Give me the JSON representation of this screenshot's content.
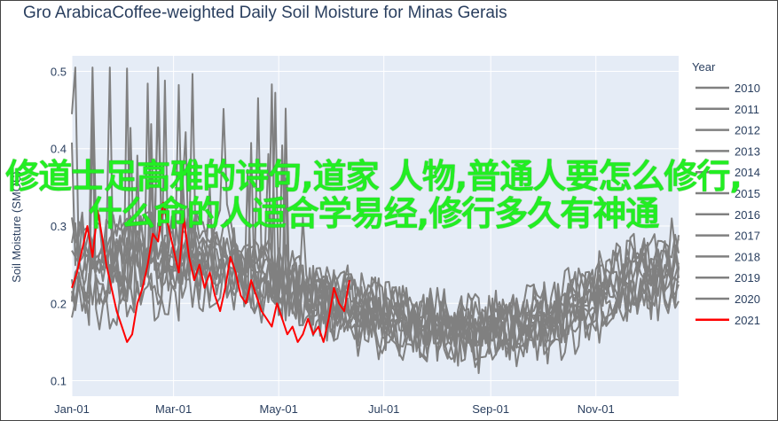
{
  "colors": {
    "background": "#ffffff",
    "plot_bg": "#e5ecf6",
    "gridline": "#ffffff",
    "text": "#2a3f5f",
    "history": "#808080",
    "current": "#ff0000",
    "watermark": "#22ee22"
  },
  "overlay_text": "修道士足高雅的诗句,道家 人物,普通人要怎么修行,什么命的人适合学易经,修行多久有神通",
  "chart_data": {
    "type": "line",
    "title": "Gro ArabicaCoffee-weighted Daily Soil Moisture for Minas Gerais",
    "xlabel": "",
    "ylabel": "Soil Moisture (SMOS)",
    "x_ticks": [
      "Jan-01",
      "Mar-01",
      "May-01",
      "Jul-01",
      "Sep-01",
      "Nov-01"
    ],
    "x_tick_days": [
      0,
      59,
      120,
      181,
      243,
      304
    ],
    "x_range_days": [
      0,
      352
    ],
    "y_ticks": [
      0.1,
      0.2,
      0.3,
      0.4,
      0.5
    ],
    "y_tick_labels": [
      "0.1",
      "0.2",
      "0.3",
      "0.4",
      "0.5"
    ],
    "ylim": [
      0.08,
      0.52
    ],
    "grid": true,
    "legend_title": "Year",
    "legend_position": "right",
    "series": [
      {
        "name": "2010",
        "color": "#808080",
        "base": [
          0.24,
          0.26,
          0.27,
          0.25,
          0.22,
          0.2,
          0.19,
          0.18,
          0.17,
          0.17,
          0.19,
          0.22,
          0.24
        ]
      },
      {
        "name": "2011",
        "color": "#808080",
        "base": [
          0.28,
          0.25,
          0.2,
          0.24,
          0.23,
          0.21,
          0.19,
          0.16,
          0.15,
          0.16,
          0.18,
          0.23,
          0.26
        ]
      },
      {
        "name": "2012",
        "color": "#808080",
        "base": [
          0.22,
          0.3,
          0.27,
          0.26,
          0.24,
          0.2,
          0.18,
          0.19,
          0.17,
          0.18,
          0.2,
          0.25,
          0.27
        ]
      },
      {
        "name": "2013",
        "color": "#808080",
        "base": [
          0.25,
          0.23,
          0.28,
          0.3,
          0.24,
          0.22,
          0.21,
          0.18,
          0.18,
          0.19,
          0.21,
          0.24,
          0.22
        ]
      },
      {
        "name": "2014",
        "color": "#808080",
        "base": [
          0.2,
          0.2,
          0.22,
          0.23,
          0.2,
          0.18,
          0.16,
          0.15,
          0.14,
          0.14,
          0.17,
          0.2,
          0.21
        ]
      },
      {
        "name": "2015",
        "color": "#808080",
        "base": [
          0.21,
          0.22,
          0.24,
          0.24,
          0.21,
          0.19,
          0.17,
          0.16,
          0.15,
          0.16,
          0.18,
          0.21,
          0.22
        ]
      },
      {
        "name": "2016",
        "color": "#808080",
        "base": [
          0.3,
          0.28,
          0.25,
          0.27,
          0.26,
          0.22,
          0.2,
          0.19,
          0.18,
          0.17,
          0.2,
          0.26,
          0.28
        ]
      },
      {
        "name": "2017",
        "color": "#808080",
        "base": [
          0.23,
          0.24,
          0.26,
          0.23,
          0.21,
          0.2,
          0.18,
          0.17,
          0.16,
          0.17,
          0.19,
          0.22,
          0.24
        ]
      },
      {
        "name": "2018",
        "color": "#808080",
        "base": [
          0.26,
          0.28,
          0.3,
          0.28,
          0.23,
          0.21,
          0.19,
          0.18,
          0.17,
          0.18,
          0.22,
          0.25,
          0.26
        ]
      },
      {
        "name": "2019",
        "color": "#808080",
        "base": [
          0.21,
          0.24,
          0.25,
          0.26,
          0.22,
          0.19,
          0.17,
          0.16,
          0.16,
          0.17,
          0.19,
          0.23,
          0.25
        ]
      },
      {
        "name": "2020",
        "color": "#808080",
        "base": [
          0.27,
          0.29,
          0.26,
          0.25,
          0.24,
          0.21,
          0.2,
          0.18,
          0.18,
          0.19,
          0.21,
          0.25,
          0.24
        ]
      },
      {
        "name": "2021",
        "color": "#ff0000",
        "x": [
          0,
          3,
          6,
          9,
          12,
          15,
          18,
          20,
          23,
          26,
          29,
          32,
          35,
          38,
          41,
          44,
          47,
          50,
          53,
          56,
          59,
          62,
          65,
          68,
          71,
          74,
          77,
          80,
          83,
          86,
          89,
          92,
          95,
          98,
          101,
          104,
          107,
          110,
          113,
          116,
          119,
          122,
          125,
          128,
          131,
          134,
          137,
          140,
          143,
          146,
          149,
          152,
          155,
          158,
          161
        ],
        "y": [
          0.22,
          0.24,
          0.27,
          0.3,
          0.26,
          0.32,
          0.28,
          0.25,
          0.22,
          0.19,
          0.17,
          0.15,
          0.16,
          0.2,
          0.22,
          0.25,
          0.29,
          0.28,
          0.33,
          0.3,
          0.27,
          0.24,
          0.31,
          0.26,
          0.23,
          0.25,
          0.22,
          0.24,
          0.21,
          0.19,
          0.22,
          0.26,
          0.24,
          0.21,
          0.2,
          0.23,
          0.21,
          0.19,
          0.18,
          0.17,
          0.2,
          0.18,
          0.16,
          0.17,
          0.15,
          0.16,
          0.18,
          0.16,
          0.17,
          0.15,
          0.18,
          0.22,
          0.2,
          0.19,
          0.23
        ]
      }
    ]
  }
}
